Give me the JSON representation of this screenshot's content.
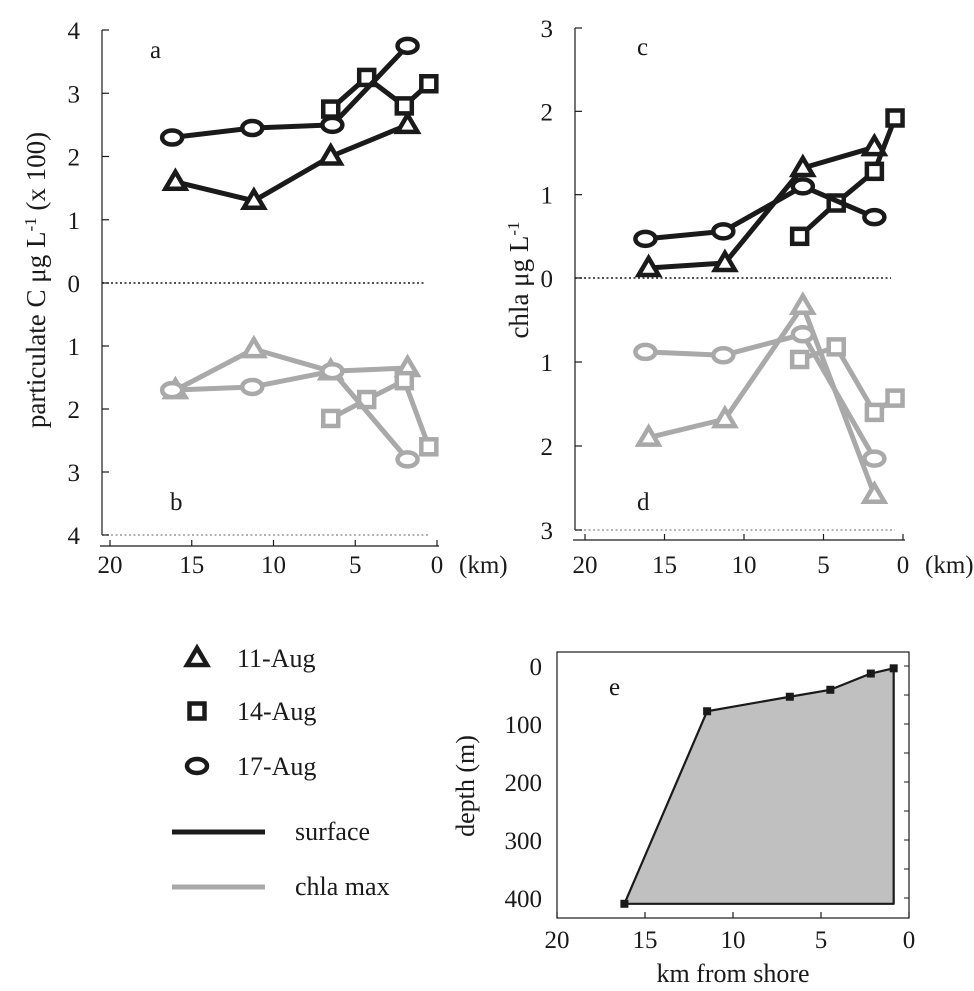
{
  "colors": {
    "surface": "#1a1a1a",
    "chla_max": "#a9a9a9",
    "depth_fill": "#c0c0c0"
  },
  "legend": {
    "items": [
      {
        "marker": "triangle",
        "label": "11-Aug"
      },
      {
        "marker": "square",
        "label": "14-Aug"
      },
      {
        "marker": "circle",
        "label": "17-Aug"
      }
    ],
    "lines": [
      {
        "style": "surface",
        "label": "surface"
      },
      {
        "style": "chla_max",
        "label": "chla max"
      }
    ]
  },
  "chart_data": [
    {
      "id": "left",
      "type": "line",
      "panel_labels": [
        "a",
        "b"
      ],
      "ylabel_parts": [
        "particulate C μg L",
        "-1",
        " (x 100)"
      ],
      "xlabel": "(km)",
      "xlim": [
        20,
        0
      ],
      "xticks": [
        20,
        15,
        10,
        5,
        0
      ],
      "upper_ylim": [
        0,
        4
      ],
      "upper_yticks": [
        0,
        1,
        2,
        3,
        4
      ],
      "lower_ylim": [
        0,
        4
      ],
      "lower_yticks": [
        1,
        2,
        3,
        4
      ],
      "lower_axis_reversed": true,
      "series": [
        {
          "date": "11-Aug",
          "panel": "a",
          "style": "surface",
          "marker": "triangle",
          "x": [
            16,
            11.2,
            6.5,
            1.8
          ],
          "y": [
            1.6,
            1.3,
            2.0,
            2.5
          ]
        },
        {
          "date": "14-Aug",
          "panel": "a",
          "style": "surface",
          "marker": "square",
          "x": [
            6.5,
            4.3,
            2.0,
            0.5
          ],
          "y": [
            2.75,
            3.25,
            2.8,
            3.15
          ]
        },
        {
          "date": "17-Aug",
          "panel": "a",
          "style": "surface",
          "marker": "circle",
          "x": [
            16.2,
            11.3,
            6.4,
            1.8
          ],
          "y": [
            2.3,
            2.45,
            2.5,
            3.75
          ]
        },
        {
          "date": "11-Aug",
          "panel": "b",
          "style": "chla_max",
          "marker": "triangle",
          "x": [
            16,
            11.2,
            6.5,
            1.8
          ],
          "y": [
            1.7,
            1.05,
            1.4,
            1.35
          ]
        },
        {
          "date": "14-Aug",
          "panel": "b",
          "style": "chla_max",
          "marker": "square",
          "x": [
            6.5,
            4.3,
            2.0,
            0.5
          ],
          "y": [
            2.15,
            1.85,
            1.55,
            2.6
          ]
        },
        {
          "date": "17-Aug",
          "panel": "b",
          "style": "chla_max",
          "marker": "circle",
          "x": [
            16.2,
            11.3,
            6.4,
            1.8
          ],
          "y": [
            1.7,
            1.65,
            1.4,
            2.8
          ]
        }
      ]
    },
    {
      "id": "right",
      "type": "line",
      "panel_labels": [
        "c",
        "d"
      ],
      "ylabel_parts": [
        "chla μg L",
        "-1",
        ""
      ],
      "xlabel": "(km)",
      "xlim": [
        20,
        0
      ],
      "xticks": [
        20,
        15,
        10,
        5,
        0
      ],
      "upper_ylim": [
        0,
        3
      ],
      "upper_yticks": [
        0,
        1,
        2,
        3
      ],
      "lower_ylim": [
        0,
        3
      ],
      "lower_yticks": [
        1,
        2,
        3
      ],
      "lower_axis_reversed": true,
      "series": [
        {
          "date": "11-Aug",
          "panel": "c",
          "style": "surface",
          "marker": "triangle",
          "x": [
            16,
            11.2,
            6.3,
            1.8
          ],
          "y": [
            0.12,
            0.18,
            1.32,
            1.57
          ]
        },
        {
          "date": "14-Aug",
          "panel": "c",
          "style": "surface",
          "marker": "square",
          "x": [
            6.5,
            4.2,
            1.8,
            0.5
          ],
          "y": [
            0.5,
            0.9,
            1.28,
            1.92
          ]
        },
        {
          "date": "17-Aug",
          "panel": "c",
          "style": "surface",
          "marker": "circle",
          "x": [
            16.2,
            11.3,
            6.3,
            1.8
          ],
          "y": [
            0.47,
            0.56,
            1.1,
            0.73
          ]
        },
        {
          "date": "11-Aug",
          "panel": "d",
          "style": "chla_max",
          "marker": "triangle",
          "x": [
            16,
            11.2,
            6.3,
            1.8
          ],
          "y": [
            1.9,
            1.68,
            0.33,
            2.58
          ]
        },
        {
          "date": "14-Aug",
          "panel": "d",
          "style": "chla_max",
          "marker": "square",
          "x": [
            6.5,
            4.2,
            1.8,
            0.5
          ],
          "y": [
            0.97,
            0.82,
            1.6,
            1.43
          ]
        },
        {
          "date": "17-Aug",
          "panel": "d",
          "style": "chla_max",
          "marker": "circle",
          "x": [
            16.2,
            11.3,
            6.3,
            1.8
          ],
          "y": [
            0.88,
            0.92,
            0.67,
            2.15
          ]
        }
      ]
    },
    {
      "id": "depth",
      "type": "area",
      "panel_label": "e",
      "xlabel": "km from shore",
      "ylabel": "depth (m)",
      "xlim": [
        20,
        0
      ],
      "xticks": [
        20,
        15,
        10,
        5,
        0
      ],
      "ylim": [
        0,
        410
      ],
      "yticks": [
        0,
        100,
        200,
        300,
        400
      ],
      "y_reversed": true,
      "x": [
        16,
        11.3,
        6.6,
        4.3,
        2.0,
        0.7
      ],
      "depth": [
        410,
        78,
        53,
        41,
        13,
        4
      ]
    }
  ]
}
